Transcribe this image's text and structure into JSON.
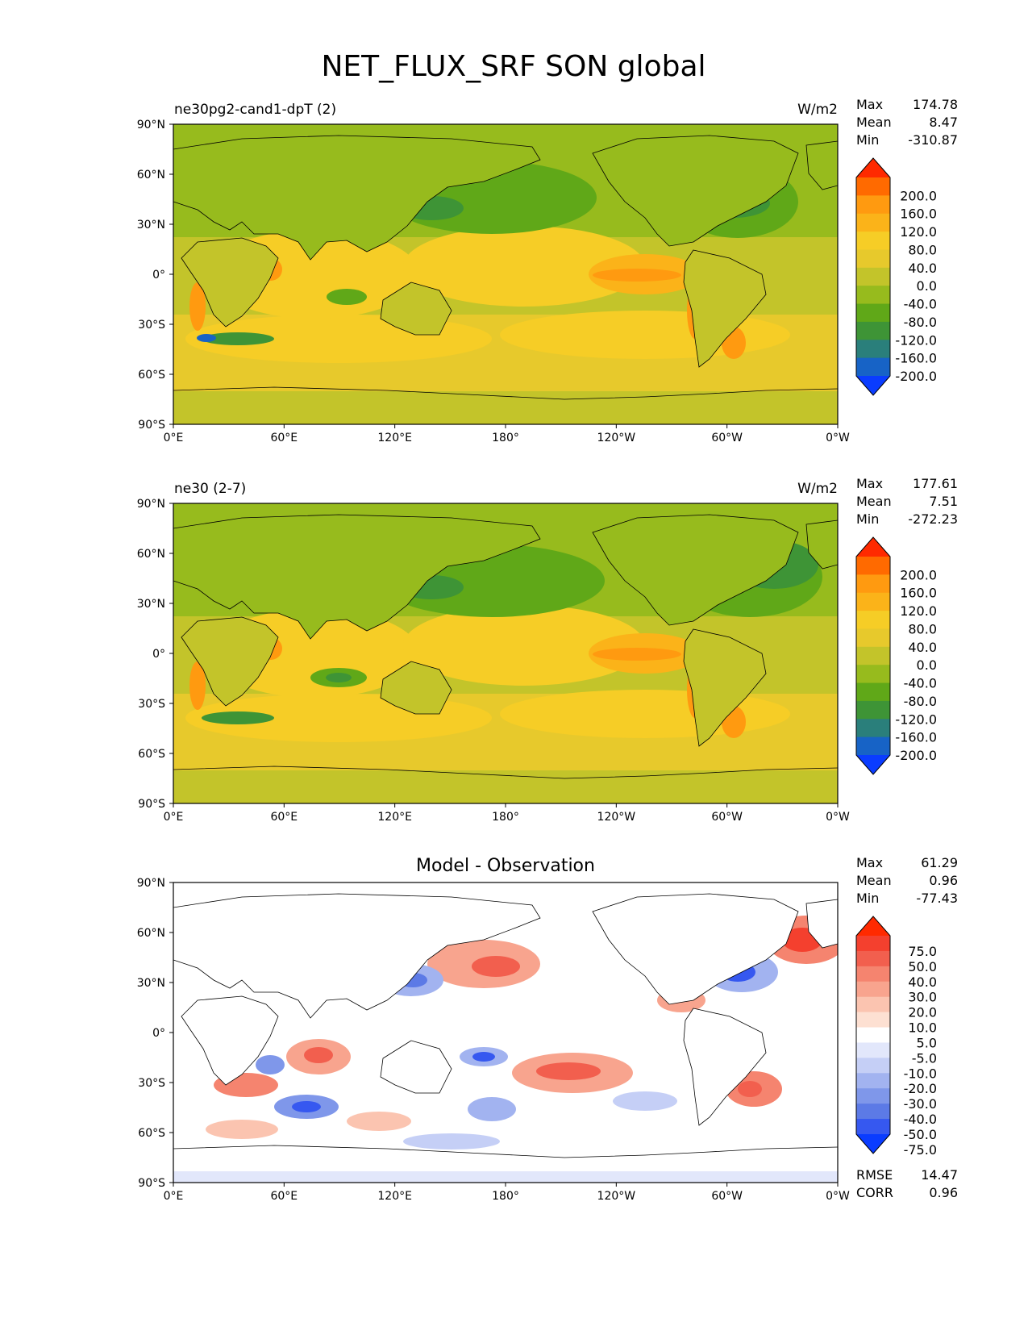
{
  "title": "NET_FLUX_SRF SON global",
  "x_ticks": [
    "0°E",
    "60°E",
    "120°E",
    "180°",
    "120°W",
    "60°W",
    "0°W"
  ],
  "y_ticks": [
    "90°N",
    "60°N",
    "30°N",
    "0°",
    "30°S",
    "60°S",
    "90°S"
  ],
  "panels": [
    {
      "left_title": "ne30pg2-cand1-dpT (2)",
      "center_title": "",
      "units": "W/m2",
      "stats": {
        "max_label": "Max",
        "max": "174.78",
        "mean_label": "Mean",
        "mean": "8.47",
        "min_label": "Min",
        "min": "-310.87"
      },
      "colorbar": {
        "labels": [
          "200.0",
          "160.0",
          "120.0",
          "80.0",
          "40.0",
          "0.0",
          "-40.0",
          "-80.0",
          "-120.0",
          "-160.0",
          "-200.0"
        ],
        "colors": [
          "#ff2a00",
          "#ff6a00",
          "#ff9a10",
          "#fbb319",
          "#f6cd26",
          "#e7c92c",
          "#c3c42a",
          "#97bb1d",
          "#60a818",
          "#3e9436",
          "#2a7f7b",
          "#1763c6",
          "#0a3cff"
        ]
      }
    },
    {
      "left_title": "ne30 (2-7)",
      "center_title": "",
      "units": "W/m2",
      "stats": {
        "max_label": "Max",
        "max": "177.61",
        "mean_label": "Mean",
        "mean": "7.51",
        "min_label": "Min",
        "min": "-272.23"
      },
      "colorbar": {
        "labels": [
          "200.0",
          "160.0",
          "120.0",
          "80.0",
          "40.0",
          "0.0",
          "-40.0",
          "-80.0",
          "-120.0",
          "-160.0",
          "-200.0"
        ],
        "colors": [
          "#ff2a00",
          "#ff6a00",
          "#ff9a10",
          "#fbb319",
          "#f6cd26",
          "#e7c92c",
          "#c3c42a",
          "#97bb1d",
          "#60a818",
          "#3e9436",
          "#2a7f7b",
          "#1763c6",
          "#0a3cff"
        ]
      }
    },
    {
      "left_title": "",
      "center_title": "Model - Observation",
      "units": "",
      "stats": {
        "max_label": "Max",
        "max": "61.29",
        "mean_label": "Mean",
        "mean": "0.96",
        "min_label": "Min",
        "min": "-77.43"
      },
      "extra": {
        "rmse_label": "RMSE",
        "rmse": "14.47",
        "corr_label": "CORR",
        "corr": "0.96"
      },
      "colorbar": {
        "labels": [
          "75.0",
          "50.0",
          "40.0",
          "30.0",
          "20.0",
          "10.0",
          "5.0",
          "-5.0",
          "-10.0",
          "-20.0",
          "-30.0",
          "-40.0",
          "-50.0",
          "-75.0"
        ],
        "colors": [
          "#ff2a00",
          "#f4402e",
          "#f25f4e",
          "#f5846f",
          "#f8a48e",
          "#fbc4b0",
          "#fde0d2",
          "#ffffff",
          "#e2e7fb",
          "#c5cff6",
          "#a2b3f0",
          "#7f97ea",
          "#5c7ae6",
          "#3658f0",
          "#0a3cff"
        ]
      }
    }
  ]
}
